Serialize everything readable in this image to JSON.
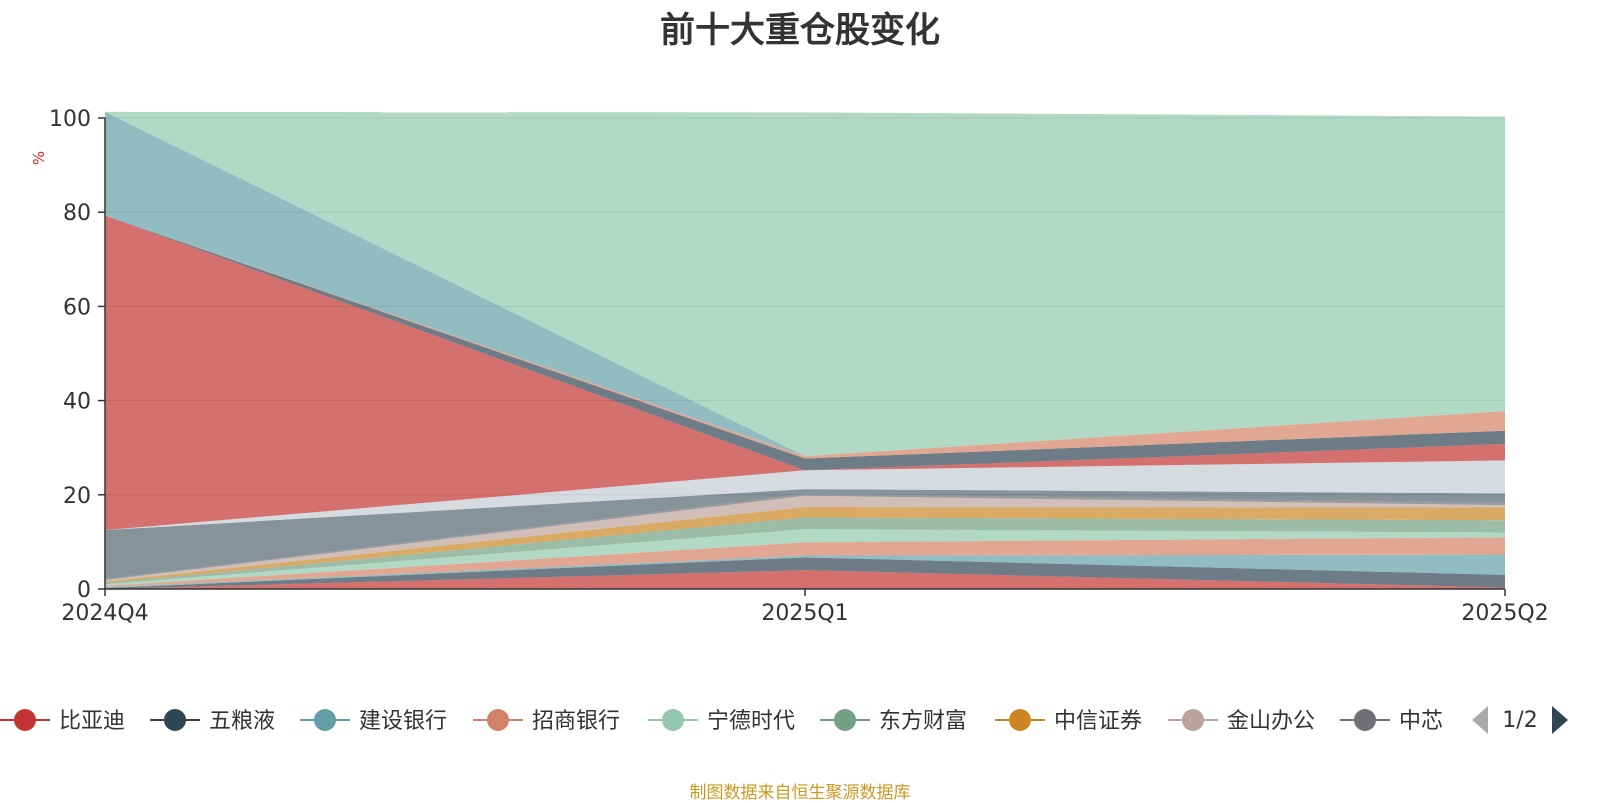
{
  "chart_data": {
    "type": "area",
    "stacked": true,
    "title": "前十大重仓股变化",
    "ylabel": "%",
    "ylim": [
      0,
      100
    ],
    "yticks": [
      0,
      20,
      40,
      60,
      80,
      100
    ],
    "categories": [
      "2024Q4",
      "2025Q1",
      "2025Q2"
    ],
    "grid": true,
    "legend_position": "bottom",
    "legend_page": "1/2",
    "series": [
      {
        "name": "比亚迪",
        "color": "#c23531",
        "values": [
          0.0,
          4.0,
          0.3
        ]
      },
      {
        "name": "五粮液",
        "color": "#2f4554",
        "values": [
          0.2,
          2.7,
          2.7
        ]
      },
      {
        "name": "建设银行",
        "color": "#61a0a8",
        "values": [
          0.2,
          0.4,
          4.3
        ]
      },
      {
        "name": "招商银行",
        "color": "#d48265",
        "values": [
          0.3,
          2.8,
          3.7
        ]
      },
      {
        "name": "宁德时代",
        "color": "#91c7ae",
        "values": [
          0.3,
          2.8,
          1.0
        ]
      },
      {
        "name": "东方财富",
        "color": "#749f83",
        "values": [
          0.3,
          2.5,
          2.6
        ]
      },
      {
        "name": "中信证券",
        "color": "#ca8622",
        "values": [
          0.3,
          2.2,
          2.7
        ]
      },
      {
        "name": "金山办公",
        "color": "#bda29a",
        "values": [
          0.3,
          2.4,
          0.5
        ]
      },
      {
        "name": "中芯国际",
        "color": "#6e7074",
        "values": [
          0.2,
          0.4,
          0.5
        ]
      },
      {
        "name": "",
        "color": "#546570",
        "values": [
          10.4,
          1.0,
          2.0
        ]
      },
      {
        "name": "",
        "color": "#c4ccd3",
        "values": [
          0.0,
          4.0,
          7.0
        ]
      },
      {
        "name": "",
        "color": "#c23531",
        "values": [
          66.8,
          0.0,
          3.5
        ]
      },
      {
        "name": "",
        "color": "#2f4554",
        "values": [
          0.0,
          2.5,
          2.8
        ]
      },
      {
        "name": "",
        "color": "#d48265",
        "values": [
          0.0,
          0.5,
          4.2
        ]
      },
      {
        "name": "",
        "color": "#61a0a8",
        "values": [
          22.0,
          0.0,
          0.0
        ]
      },
      {
        "name": "",
        "color": "#91c7ae",
        "values": [
          0.0,
          73.0,
          62.5
        ]
      }
    ]
  },
  "source_note": "制图数据来自恒生聚源数据库",
  "legend_visible_labels": [
    "比亚迪",
    "五粮液",
    "建设银行",
    "招商银行",
    "宁德时代",
    "东方财富",
    "中信证券",
    "金山办公",
    "中芯"
  ],
  "colors": {
    "text": "#333333",
    "axis": "#333333",
    "grid": "#cccccc",
    "unit": "#e02020",
    "source": "#cc9922",
    "pager_active": "#2f4554",
    "pager_inactive": "#aaaaaa"
  }
}
